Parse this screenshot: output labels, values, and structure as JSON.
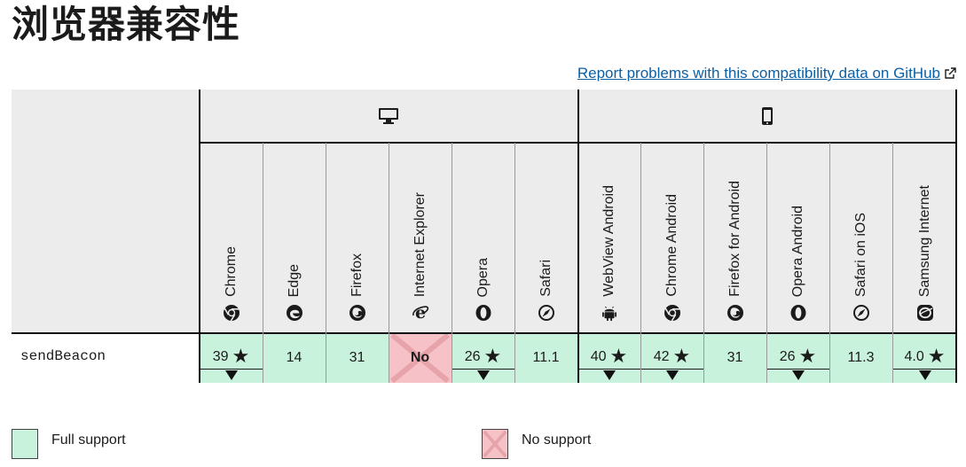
{
  "page_title": "浏览器兼容性",
  "report_link": "Report problems with this compatibility data on GitHub",
  "platforms": [
    {
      "name": "desktop",
      "icon": "desktop-icon"
    },
    {
      "name": "mobile",
      "icon": "mobile-icon"
    }
  ],
  "browsers": [
    {
      "name": "Chrome",
      "icon": "chrome-icon"
    },
    {
      "name": "Edge",
      "icon": "edge-icon"
    },
    {
      "name": "Firefox",
      "icon": "firefox-icon"
    },
    {
      "name": "Internet Explorer",
      "icon": "ie-icon"
    },
    {
      "name": "Opera",
      "icon": "opera-icon"
    },
    {
      "name": "Safari",
      "icon": "safari-icon"
    },
    {
      "name": "WebView Android",
      "icon": "android-icon"
    },
    {
      "name": "Chrome Android",
      "icon": "chrome-icon"
    },
    {
      "name": "Firefox for Android",
      "icon": "firefox-icon"
    },
    {
      "name": "Opera Android",
      "icon": "opera-icon"
    },
    {
      "name": "Safari on iOS",
      "icon": "safari-icon"
    },
    {
      "name": "Samsung Internet",
      "icon": "samsung-icon"
    }
  ],
  "feature": "sendBeacon",
  "support": [
    {
      "text": "39",
      "status": "full",
      "note": true
    },
    {
      "text": "14",
      "status": "full",
      "note": false
    },
    {
      "text": "31",
      "status": "full",
      "note": false
    },
    {
      "text": "No",
      "status": "none",
      "note": false
    },
    {
      "text": "26",
      "status": "full",
      "note": true
    },
    {
      "text": "11.1",
      "status": "full",
      "note": false
    },
    {
      "text": "40",
      "status": "full",
      "note": true
    },
    {
      "text": "42",
      "status": "full",
      "note": true
    },
    {
      "text": "31",
      "status": "full",
      "note": false
    },
    {
      "text": "26",
      "status": "full",
      "note": true
    },
    {
      "text": "11.3",
      "status": "full",
      "note": false
    },
    {
      "text": "4.0",
      "status": "full",
      "note": true
    }
  ],
  "legend": [
    {
      "label": "Full support",
      "color": "#c9f2dc"
    },
    {
      "label": "No support",
      "color": "#f6c2c7"
    }
  ],
  "colors": {
    "full": "#c9f2dc",
    "none": "#f6c2c7",
    "link": "#0b5fa5",
    "header_bg": "#ececec"
  }
}
